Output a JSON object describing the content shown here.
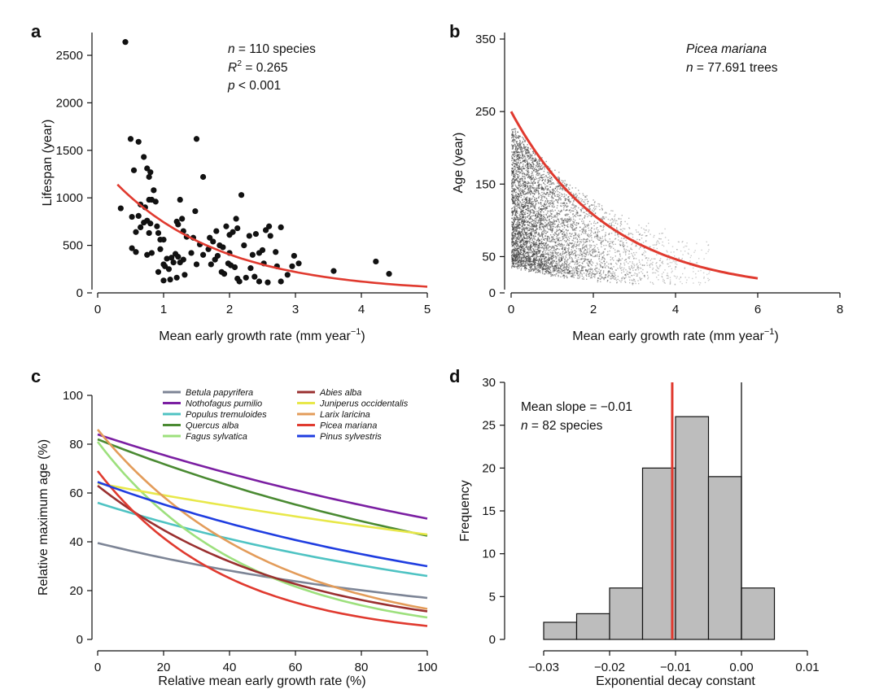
{
  "chart_data": [
    {
      "panel": "a",
      "type": "scatter",
      "xlabel": "Mean early growth rate (mm year",
      "xlabel_sup": "−1",
      "xlabel_end": ")",
      "ylabel": "Lifespan (year)",
      "xlim": [
        0,
        5
      ],
      "ylim": [
        0,
        2700
      ],
      "xticks": [
        0,
        1,
        2,
        3,
        4,
        5
      ],
      "xtick_labels": [
        "0",
        "1",
        "2",
        "3",
        "4",
        "5"
      ],
      "yticks": [
        0,
        500,
        1000,
        1500,
        2000,
        2500
      ],
      "ytick_labels": [
        "0",
        "500",
        "1000",
        "1500",
        "2000",
        "2500"
      ],
      "annotations": {
        "n_label": "n",
        "n_text": " = 110 species",
        "r_label": "R",
        "r_sup": "2",
        "r_text": " = 0.265",
        "p_label": "p",
        "p_text": " < 0.001"
      },
      "fit": {
        "x0": 0.3,
        "x1": 5.0,
        "y0": 1140,
        "y1": 65,
        "color": "#e03a2f"
      },
      "points": [
        [
          0.42,
          2640
        ],
        [
          0.5,
          1620
        ],
        [
          0.62,
          1590
        ],
        [
          0.7,
          1430
        ],
        [
          0.55,
          1290
        ],
        [
          0.75,
          1310
        ],
        [
          0.78,
          1220
        ],
        [
          0.8,
          1270
        ],
        [
          0.85,
          1080
        ],
        [
          0.65,
          930
        ],
        [
          0.78,
          980
        ],
        [
          0.82,
          980
        ],
        [
          0.88,
          960
        ],
        [
          0.72,
          900
        ],
        [
          0.35,
          890
        ],
        [
          0.52,
          800
        ],
        [
          0.62,
          810
        ],
        [
          0.7,
          740
        ],
        [
          0.75,
          760
        ],
        [
          0.8,
          730
        ],
        [
          0.9,
          700
        ],
        [
          0.58,
          640
        ],
        [
          0.65,
          690
        ],
        [
          0.78,
          630
        ],
        [
          0.92,
          630
        ],
        [
          0.95,
          560
        ],
        [
          1.0,
          560
        ],
        [
          0.52,
          470
        ],
        [
          0.58,
          430
        ],
        [
          0.75,
          400
        ],
        [
          0.82,
          420
        ],
        [
          0.95,
          460
        ],
        [
          1.05,
          360
        ],
        [
          1.0,
          300
        ],
        [
          1.02,
          280
        ],
        [
          1.08,
          250
        ],
        [
          1.12,
          370
        ],
        [
          1.18,
          410
        ],
        [
          1.22,
          380
        ],
        [
          1.25,
          320
        ],
        [
          1.3,
          350
        ],
        [
          1.15,
          320
        ],
        [
          1.2,
          160
        ],
        [
          1.32,
          190
        ],
        [
          1.0,
          130
        ],
        [
          1.1,
          140
        ],
        [
          1.25,
          980
        ],
        [
          1.2,
          750
        ],
        [
          1.22,
          720
        ],
        [
          1.28,
          780
        ],
        [
          1.3,
          650
        ],
        [
          1.35,
          590
        ],
        [
          1.45,
          580
        ],
        [
          1.5,
          1620
        ],
        [
          1.48,
          860
        ],
        [
          1.6,
          1220
        ],
        [
          1.7,
          580
        ],
        [
          1.75,
          540
        ],
        [
          1.8,
          650
        ],
        [
          1.85,
          500
        ],
        [
          1.9,
          480
        ],
        [
          1.95,
          700
        ],
        [
          2.0,
          610
        ],
        [
          2.05,
          640
        ],
        [
          2.1,
          780
        ],
        [
          2.12,
          680
        ],
        [
          2.18,
          1030
        ],
        [
          2.22,
          500
        ],
        [
          2.3,
          600
        ],
        [
          2.35,
          400
        ],
        [
          2.4,
          620
        ],
        [
          2.45,
          420
        ],
        [
          2.5,
          450
        ],
        [
          2.55,
          660
        ],
        [
          2.6,
          700
        ],
        [
          2.62,
          600
        ],
        [
          2.7,
          430
        ],
        [
          2.78,
          690
        ],
        [
          1.55,
          510
        ],
        [
          1.6,
          400
        ],
        [
          1.72,
          300
        ],
        [
          1.78,
          350
        ],
        [
          1.82,
          390
        ],
        [
          1.88,
          220
        ],
        [
          1.92,
          200
        ],
        [
          1.98,
          310
        ],
        [
          2.02,
          290
        ],
        [
          2.08,
          270
        ],
        [
          2.12,
          150
        ],
        [
          2.15,
          120
        ],
        [
          2.25,
          160
        ],
        [
          2.32,
          260
        ],
        [
          2.38,
          170
        ],
        [
          2.45,
          120
        ],
        [
          2.52,
          310
        ],
        [
          2.58,
          110
        ],
        [
          2.72,
          280
        ],
        [
          2.78,
          120
        ],
        [
          2.88,
          190
        ],
        [
          2.98,
          390
        ],
        [
          3.05,
          310
        ],
        [
          2.95,
          280
        ],
        [
          3.58,
          230
        ],
        [
          4.22,
          330
        ],
        [
          4.42,
          200
        ],
        [
          1.42,
          420
        ],
        [
          1.68,
          460
        ],
        [
          2.0,
          420
        ],
        [
          1.5,
          300
        ],
        [
          0.92,
          220
        ]
      ]
    },
    {
      "panel": "b",
      "type": "scatter",
      "title": "Picea mariana",
      "n_label": "n",
      "n_text": " = 77.691 trees",
      "xlabel": "Mean early growth rate (mm year",
      "xlabel_sup": "−1",
      "xlabel_end": ")",
      "ylabel": "Age (year)",
      "xlim": [
        0,
        8
      ],
      "ylim": [
        0,
        360
      ],
      "xticks": [
        0,
        2,
        4,
        6,
        8
      ],
      "xtick_labels": [
        "0",
        "2",
        "4",
        "6",
        "8"
      ],
      "yticks": [
        0,
        50,
        150,
        250,
        350
      ],
      "ytick_labels": [
        "0",
        "50",
        "150",
        "250",
        "350"
      ],
      "fit": {
        "x0": 0,
        "x1": 6,
        "y0": 250,
        "y1": 20,
        "color": "#e03a2f"
      }
    },
    {
      "panel": "c",
      "type": "line",
      "xlabel": "Relative mean early growth rate (%)",
      "ylabel": "Relative maximum age (%)",
      "xlim": [
        0,
        100
      ],
      "ylim": [
        0,
        100
      ],
      "xticks": [
        0,
        20,
        40,
        60,
        80,
        100
      ],
      "xtick_labels": [
        "0",
        "20",
        "40",
        "60",
        "80",
        "100"
      ],
      "yticks": [
        0,
        20,
        40,
        60,
        80,
        100
      ],
      "ytick_labels": [
        "0",
        "20",
        "40",
        "60",
        "80",
        "100"
      ],
      "series": [
        {
          "name": "Betula papyrifera",
          "color": "#7d8596",
          "y0": 39.5,
          "y100": 17
        },
        {
          "name": "Nothofagus pumilio",
          "color": "#7b1fa2",
          "y0": 84,
          "y100": 49.5
        },
        {
          "name": "Populus tremuloides",
          "color": "#4fc3c3",
          "y0": 56,
          "y100": 26
        },
        {
          "name": "Quercus alba",
          "color": "#4a8a32",
          "y0": 82,
          "y100": 42.5
        },
        {
          "name": "Fagus sylvatica",
          "color": "#9de07d",
          "y0": 81,
          "y100": 9
        },
        {
          "name": "Abies alba",
          "color": "#9a3030",
          "y0": 63,
          "y100": 11.5
        },
        {
          "name": "Juniperus occidentalis",
          "color": "#e8e84a",
          "y0": 64,
          "y100": 43
        },
        {
          "name": "Larix laricina",
          "color": "#e39c5a",
          "y0": 86,
          "y100": 12.5
        },
        {
          "name": "Picea mariana",
          "color": "#e03a2f",
          "y0": 69,
          "y100": 5.5
        },
        {
          "name": "Pinus sylvestris",
          "color": "#1f3de0",
          "y0": 64.5,
          "y100": 30
        }
      ]
    },
    {
      "panel": "d",
      "type": "bar",
      "xlabel": "Exponential decay constant",
      "ylabel": "Frequency",
      "annotation_slope": "Mean slope = −0.01",
      "n_label": "n",
      "n_text": " = 82 species",
      "xlim": [
        -0.03,
        0.01
      ],
      "ylim": [
        0,
        30
      ],
      "xticks": [
        -0.03,
        -0.02,
        -0.01,
        0.0,
        0.01
      ],
      "xtick_labels": [
        "−0.03",
        "−0.02",
        "−0.01",
        "0.00",
        "0.01"
      ],
      "yticks": [
        0,
        5,
        10,
        15,
        20,
        25,
        30
      ],
      "ytick_labels": [
        "0",
        "5",
        "10",
        "15",
        "20",
        "25",
        "30"
      ],
      "bin_edges": [
        -0.03,
        -0.025,
        -0.02,
        -0.015,
        -0.01,
        -0.005,
        0.0,
        0.005
      ],
      "values": [
        2,
        3,
        6,
        20,
        26,
        19,
        6
      ],
      "mean_line": -0.0105,
      "zero_line": 0.0,
      "bar_color": "#bdbdbd",
      "mean_color": "#e03a2f"
    }
  ],
  "panels": {
    "a": "a",
    "b": "b",
    "c": "c",
    "d": "d"
  }
}
